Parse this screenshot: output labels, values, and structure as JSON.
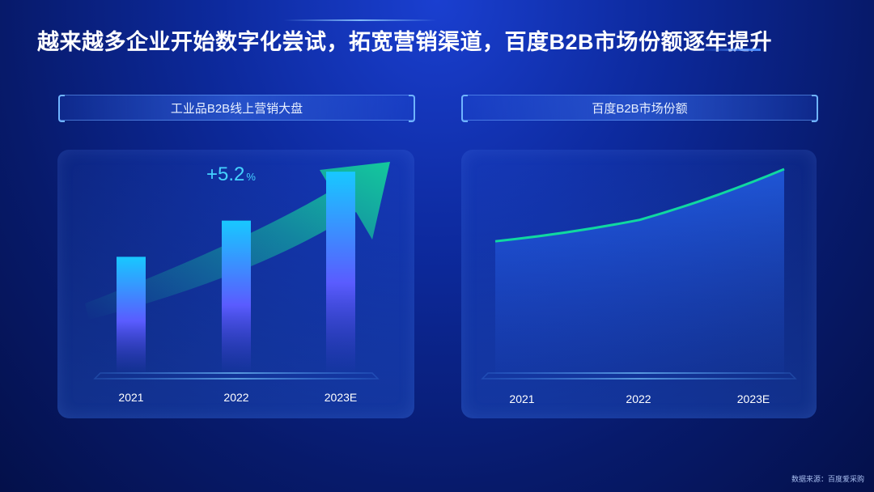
{
  "page": {
    "title": "越来越多企业开始数字化尝试，拓宽营销渠道，百度B2B市场份额逐年提升",
    "source": "数据来源：百度爱采购"
  },
  "colors": {
    "bar_top": "#18c8ff",
    "bar_bottom": "#5a5cff",
    "line": "#10d8a0",
    "arrow": "#14c89c"
  },
  "chart_data": [
    {
      "type": "bar",
      "title": "工业品B2B线上营销大盘",
      "categories": [
        "2021",
        "2022",
        "2023E"
      ],
      "values": [
        55,
        72,
        95
      ],
      "annotation": {
        "value": "+5.2",
        "unit": "%"
      },
      "ylim": [
        0,
        100
      ],
      "grid": false,
      "legend": "none"
    },
    {
      "type": "area",
      "title": "百度B2B市场份额",
      "categories": [
        "2021",
        "2022",
        "2023E"
      ],
      "values": [
        68,
        79,
        105
      ],
      "ylim": [
        0,
        110
      ],
      "grid": false,
      "legend": "none"
    }
  ]
}
